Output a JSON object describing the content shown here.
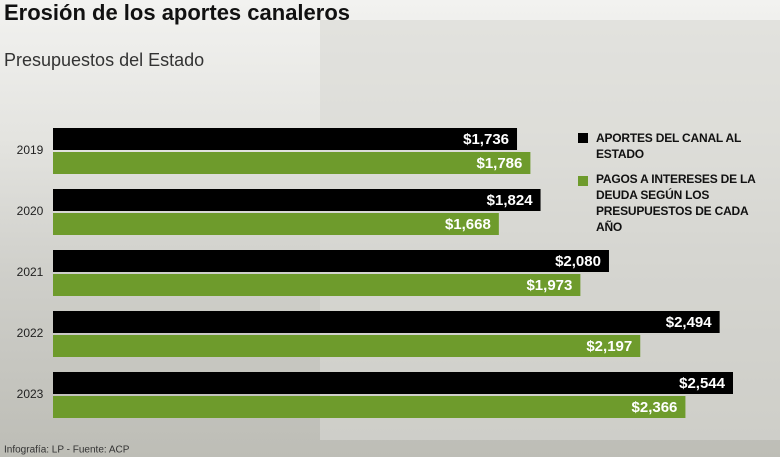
{
  "chart_data": {
    "type": "hbar",
    "title": "Erosión de los aportes canaleros",
    "subtitle": "Presupuestos del Estado",
    "source": "Infografía: LP - Fuente: ACP",
    "categories": [
      "2019",
      "2020",
      "2021",
      "2022",
      "2023"
    ],
    "series": [
      {
        "name": "APORTES DEL CANAL AL ESTADO",
        "color": "#000000",
        "values": [
          1736,
          1824,
          2080,
          2494,
          2544
        ],
        "value_labels": [
          "$1,736",
          "$1,824",
          "$2,080",
          "$2,494",
          "$2,544"
        ]
      },
      {
        "name": "PAGOS A INTERESES DE LA DEUDA SEGÚN LOS PRESUPUESTOS DE CADA AÑO",
        "color": "#6e9b2c",
        "values": [
          1786,
          1668,
          1973,
          2197,
          2366
        ],
        "value_labels": [
          "$1,786",
          "$1,668",
          "$1,973",
          "$2,197",
          "$2,366"
        ]
      }
    ]
  }
}
